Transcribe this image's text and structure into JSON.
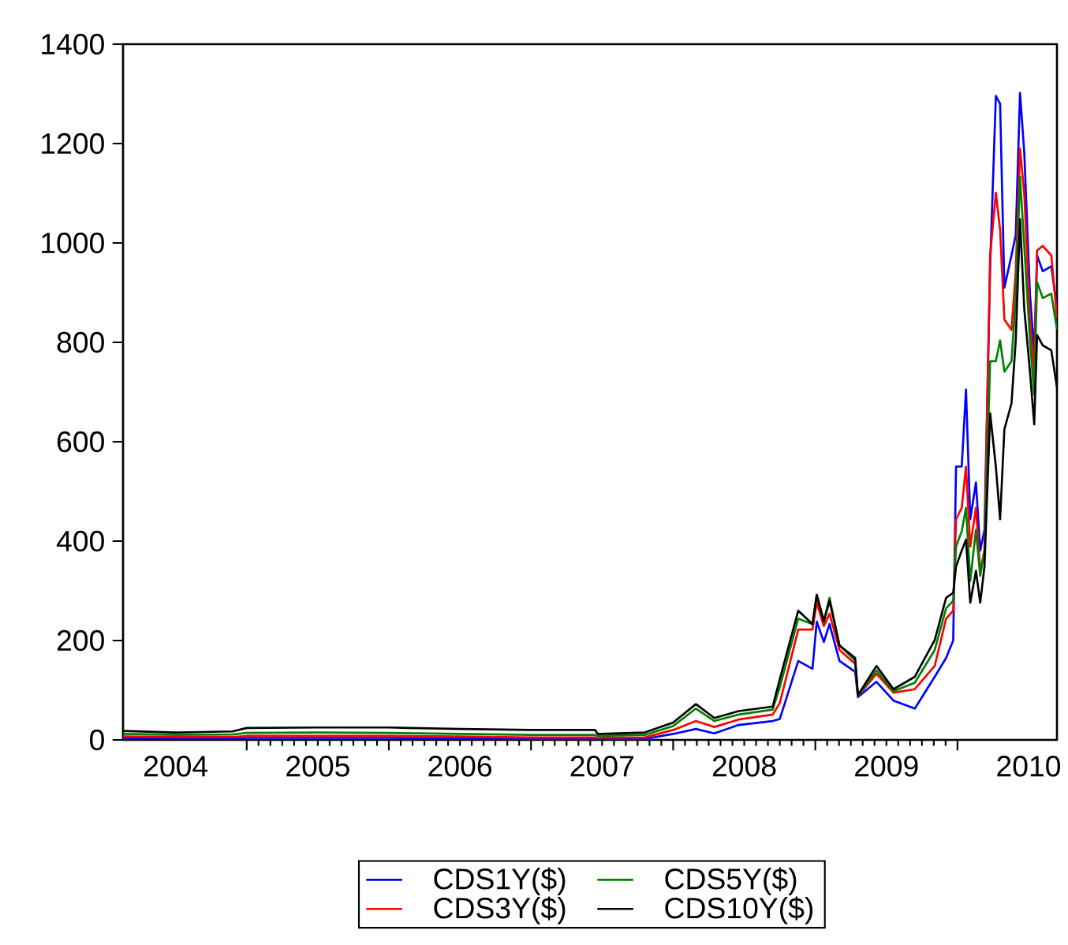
{
  "chart_data": {
    "type": "line",
    "x": [
      2004.13,
      2004.5,
      2004.9,
      2005.0,
      2005.5,
      2006.0,
      2006.5,
      2007.0,
      2007.45,
      2007.47,
      2007.8,
      2008.0,
      2008.16,
      2008.29,
      2008.46,
      2008.7,
      2008.75,
      2008.88,
      2008.98,
      2009.01,
      2009.06,
      2009.1,
      2009.17,
      2009.28,
      2009.3,
      2009.43,
      2009.55,
      2009.7,
      2009.84,
      2009.92,
      2009.97,
      2009.99,
      2010.03,
      2010.06,
      2010.09,
      2010.13,
      2010.16,
      2010.19,
      2010.23,
      2010.27,
      2010.3,
      2010.33,
      2010.38,
      2010.41,
      2010.44,
      2010.47,
      2010.51,
      2010.54,
      2010.56,
      2010.6,
      2010.66,
      2010.7
    ],
    "series": [
      {
        "name": "CDS1Y($)",
        "color": "#0000ff",
        "values": [
          3,
          3,
          3,
          4,
          4,
          4,
          3,
          2,
          2,
          2,
          2,
          12,
          22,
          13,
          30,
          38,
          42,
          159,
          143,
          238,
          197,
          233,
          159,
          137,
          86,
          117,
          79,
          63,
          127,
          165,
          200,
          550,
          550,
          705,
          444,
          518,
          381,
          423,
          955,
          1296,
          1280,
          910,
          975,
          1016,
          1302,
          1182,
          897,
          780,
          975,
          943,
          953,
          870
        ]
      },
      {
        "name": "CDS3Y($)",
        "color": "#ff0000",
        "values": [
          7,
          6,
          6,
          8,
          8,
          8,
          7,
          5,
          5,
          4,
          5,
          20,
          38,
          26,
          41,
          51,
          74,
          222,
          222,
          276,
          229,
          254,
          181,
          153,
          88,
          133,
          95,
          102,
          149,
          244,
          260,
          444,
          467,
          550,
          389,
          467,
          340,
          381,
          975,
          1101,
          1026,
          846,
          825,
          943,
          1190,
          1099,
          846,
          741,
          985,
          994,
          975,
          848
        ]
      },
      {
        "name": "CDS5Y($)",
        "color": "#008000",
        "values": [
          12,
          10,
          11,
          14,
          15,
          14,
          12,
          10,
          10,
          8,
          10,
          28,
          63,
          38,
          51,
          61,
          106,
          244,
          233,
          292,
          240,
          286,
          190,
          160,
          88,
          140,
          98,
          115,
          181,
          265,
          280,
          389,
          420,
          467,
          320,
          423,
          330,
          381,
          762,
          762,
          804,
          741,
          762,
          889,
          1133,
          994,
          804,
          695,
          921,
          889,
          898,
          826
        ]
      },
      {
        "name": "CDS10Y($)",
        "color": "#000000",
        "values": [
          18,
          15,
          17,
          24,
          25,
          25,
          22,
          20,
          20,
          12,
          15,
          35,
          72,
          44,
          58,
          67,
          122,
          260,
          233,
          292,
          238,
          280,
          190,
          165,
          90,
          149,
          102,
          127,
          201,
          286,
          296,
          349,
          381,
          403,
          276,
          340,
          276,
          349,
          657,
          550,
          444,
          625,
          677,
          804,
          1048,
          867,
          741,
          635,
          815,
          794,
          784,
          709
        ]
      }
    ],
    "xlim": [
      2004.13,
      2010.7
    ],
    "ylim": [
      0,
      1400
    ],
    "xticks": [
      {
        "value": 2004.5,
        "label": "2004"
      },
      {
        "value": 2005,
        "label": null
      },
      {
        "value": 2005.5,
        "label": "2005"
      },
      {
        "value": 2006,
        "label": null
      },
      {
        "value": 2006.5,
        "label": "2006"
      },
      {
        "value": 2007,
        "label": null
      },
      {
        "value": 2007.5,
        "label": "2007"
      },
      {
        "value": 2008,
        "label": null
      },
      {
        "value": 2008.5,
        "label": "2008"
      },
      {
        "value": 2009,
        "label": null
      },
      {
        "value": 2009.5,
        "label": "2009"
      },
      {
        "value": 2010,
        "label": null
      },
      {
        "value": 2010.5,
        "label": "2010"
      }
    ],
    "yticks": [
      0,
      200,
      400,
      600,
      800,
      1000,
      1200,
      1400
    ],
    "legend": "bottom"
  }
}
